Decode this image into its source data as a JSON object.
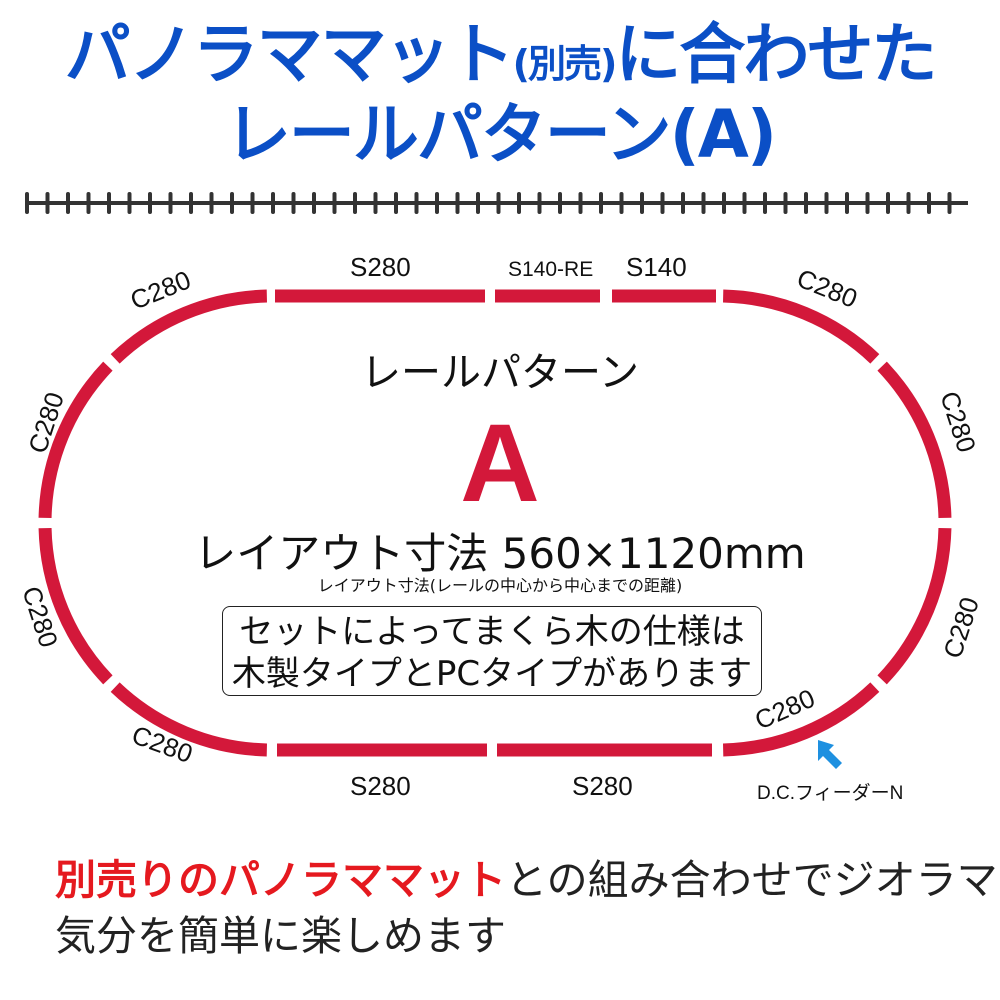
{
  "title": {
    "line1_a": "パノラママット",
    "line1_small": "(別売)",
    "line1_b": "に合わせた",
    "line2": "レールパターン(A)"
  },
  "colors": {
    "title": "#0b4fc6",
    "rail": "#d3183a",
    "ruler": "#333333",
    "arrow": "#1e90e0",
    "highlight": "#e5191f"
  },
  "layout": {
    "pattern_label": "レールパターン",
    "pattern_letter": "A",
    "dimensions": "レイアウト寸法 560×1120mm",
    "dimensions_note": "レイアウト寸法(レールの中心から中心までの距離)",
    "note_line1": "セットによってまくら木の仕様は",
    "note_line2": "木製タイプとPCタイプがあります",
    "feeder_label": "D.C.フィーダーN",
    "feeder_icon": "arrow-up-left-icon"
  },
  "rails": {
    "top": [
      "S280",
      "S140-RE",
      "S140"
    ],
    "bottom": [
      "S280",
      "S280"
    ],
    "curves": [
      "C280",
      "C280",
      "C280",
      "C280",
      "C280",
      "C280",
      "C280",
      "C280"
    ]
  },
  "bottom_text": {
    "highlight": "別売りのパノラママット",
    "rest1": "との組み合わせでジオラマ",
    "line2": "気分を簡単に楽しめます"
  }
}
